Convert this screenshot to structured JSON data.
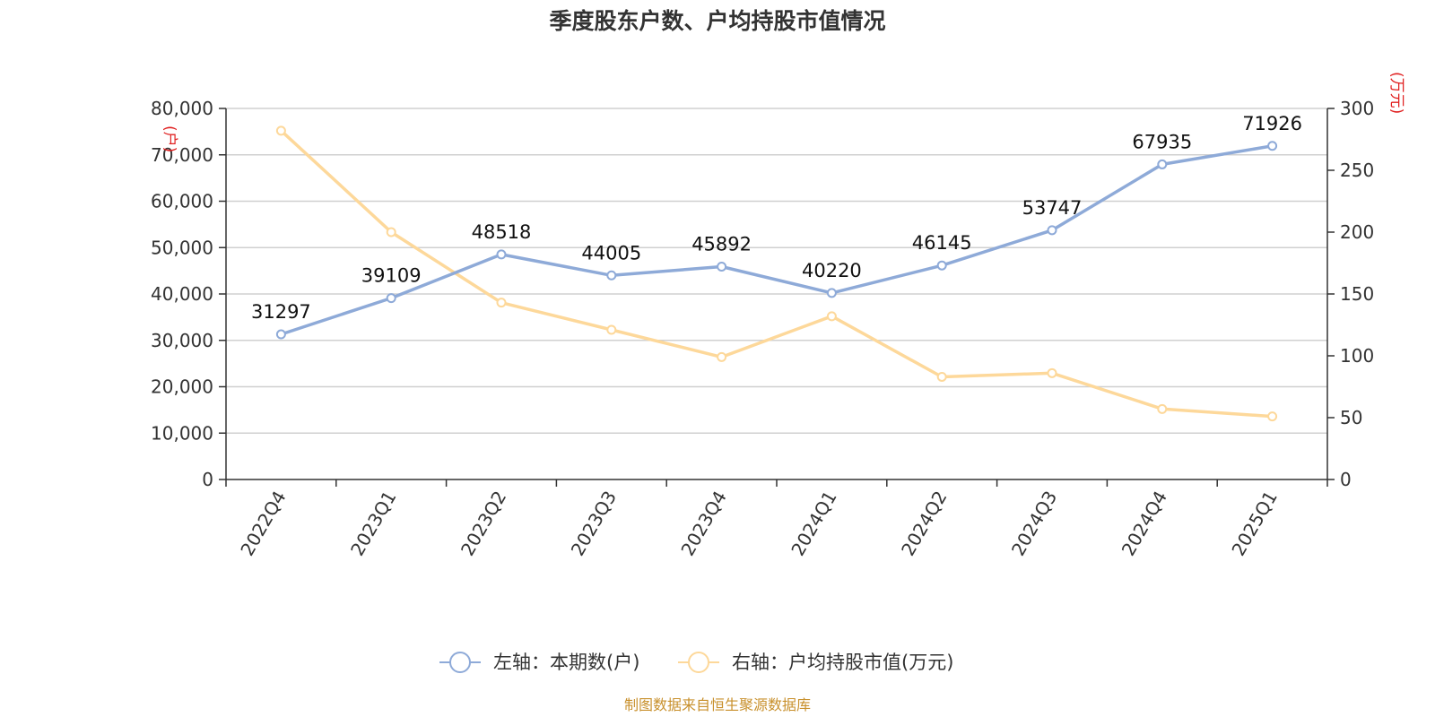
{
  "chart_data": {
    "type": "line",
    "title": "季度股东户数、户均持股市值情况",
    "categories": [
      "2022Q4",
      "2023Q1",
      "2023Q2",
      "2023Q3",
      "2023Q4",
      "2024Q1",
      "2024Q2",
      "2024Q3",
      "2024Q4",
      "2025Q1"
    ],
    "series": [
      {
        "name": "左轴：本期数(户)",
        "axis": "left",
        "color": "#8eaad8",
        "values": [
          31297,
          39109,
          48518,
          44005,
          45892,
          40220,
          46145,
          53747,
          67935,
          71926
        ],
        "data_labels": [
          "31297",
          "39109",
          "48518",
          "44005",
          "45892",
          "40220",
          "46145",
          "53747",
          "67935",
          "71926"
        ]
      },
      {
        "name": "右轴：户均持股市值(万元)",
        "axis": "right",
        "color": "#fdd89a",
        "values": [
          282,
          200,
          143,
          121,
          99,
          132,
          83,
          86,
          57,
          51
        ]
      }
    ],
    "left_axis": {
      "unit": "(户)",
      "min": 0,
      "max": 80000,
      "ticks": [
        0,
        10000,
        20000,
        30000,
        40000,
        50000,
        60000,
        70000,
        80000
      ],
      "tick_labels": [
        "0",
        "10,000",
        "20,000",
        "30,000",
        "40,000",
        "50,000",
        "60,000",
        "70,000",
        "80,000"
      ]
    },
    "right_axis": {
      "unit": "(万元)",
      "min": 0,
      "max": 300,
      "ticks": [
        0,
        50,
        100,
        150,
        200,
        250,
        300
      ],
      "tick_labels": [
        "0",
        "50",
        "100",
        "150",
        "200",
        "250",
        "300"
      ]
    },
    "grid": true,
    "legend_position": "bottom-center",
    "source": "制图数据来自恒生聚源数据库"
  }
}
